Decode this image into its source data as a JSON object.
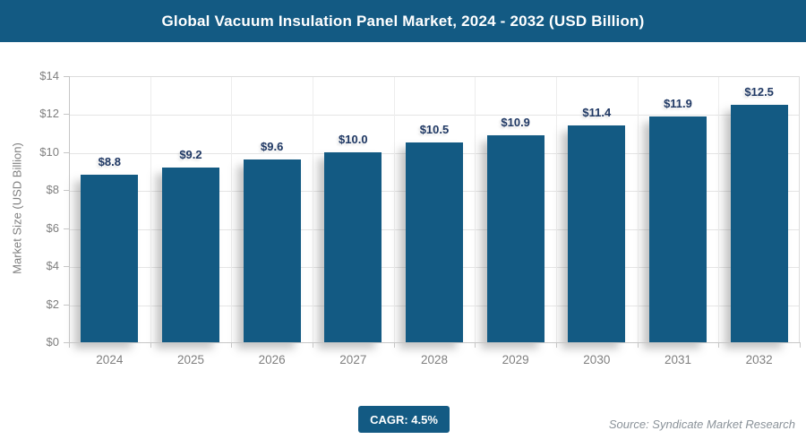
{
  "header": {
    "title": "Global Vacuum Insulation Panel Market, 2024 - 2032 (USD Billion)"
  },
  "chart_data": {
    "type": "bar",
    "title": "Global Vacuum Insulation Panel Market, 2024 - 2032 (USD Billion)",
    "categories": [
      "2024",
      "2025",
      "2026",
      "2027",
      "2028",
      "2029",
      "2030",
      "2031",
      "2032"
    ],
    "values": [
      8.8,
      9.2,
      9.6,
      10.0,
      10.5,
      10.9,
      11.4,
      11.9,
      12.5
    ],
    "value_labels": [
      "$8.8",
      "$9.2",
      "$9.6",
      "$10.0",
      "$10.5",
      "$10.9",
      "$11.4",
      "$11.9",
      "$12.5"
    ],
    "xlabel": "",
    "ylabel": "Market Size (USD Billion)",
    "ylim": [
      0,
      14
    ],
    "ytick_step": 2,
    "ytick_labels": [
      "$0",
      "$2",
      "$4",
      "$6",
      "$8",
      "$10",
      "$12",
      "$14"
    ],
    "grid": true,
    "legend": false,
    "bar_color": "#135a83",
    "value_label_color": "#1f3864"
  },
  "footer": {
    "cagr_label": "CAGR: 4.5%",
    "source": "Source: Syndicate Market Research"
  },
  "colors": {
    "accent": "#135a83",
    "axis_text": "#7f7f7f",
    "gridline": "#e5e5e5"
  }
}
